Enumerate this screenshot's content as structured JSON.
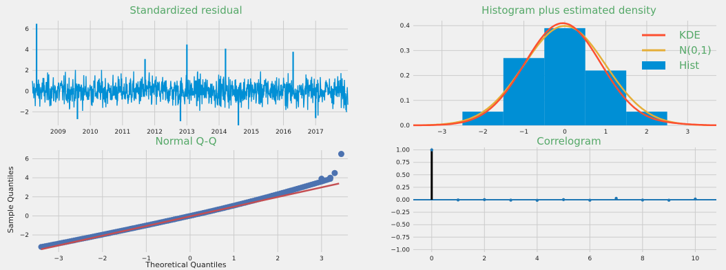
{
  "chart_data": [
    {
      "type": "line",
      "title": "Standardized residual",
      "xlabel": "",
      "ylabel": "",
      "x_tick_labels": [
        "2009",
        "2010",
        "2011",
        "2012",
        "2013",
        "2014",
        "2015",
        "2016",
        "2017"
      ],
      "y_ticks": [
        -2,
        0,
        2,
        4,
        6
      ],
      "xlim": [
        2008.2,
        2018.0
      ],
      "ylim": [
        -3.3,
        6.8
      ],
      "series_color": "#008fd5",
      "spikes": [
        {
          "x": 2008.33,
          "y": 6.5
        },
        {
          "x": 2013.0,
          "y": 4.5
        },
        {
          "x": 2014.2,
          "y": 4.1
        },
        {
          "x": 2014.6,
          "y": -3.3
        },
        {
          "x": 2016.3,
          "y": 3.8
        },
        {
          "x": 2011.7,
          "y": 3.1
        },
        {
          "x": 2012.8,
          "y": -2.9
        },
        {
          "x": 2009.6,
          "y": -2.7
        },
        {
          "x": 2017.0,
          "y": -2.6
        }
      ],
      "grid": true
    },
    {
      "type": "bar",
      "title": "Histogram plus estimated density",
      "x_ticks": [
        -3,
        -2,
        -1,
        0,
        1,
        2,
        3
      ],
      "y_ticks": [
        0.0,
        0.1,
        0.2,
        0.3,
        0.4
      ],
      "xlim": [
        -3.7,
        3.7
      ],
      "ylim": [
        0,
        0.42
      ],
      "bins": [
        {
          "x0": -2.5,
          "x1": -1.5,
          "value": 0.055
        },
        {
          "x0": -1.5,
          "x1": -0.5,
          "value": 0.27
        },
        {
          "x0": -0.5,
          "x1": 0.5,
          "value": 0.39
        },
        {
          "x0": 0.5,
          "x1": 1.5,
          "value": 0.22
        },
        {
          "x0": 1.5,
          "x1": 2.5,
          "value": 0.055
        }
      ],
      "kde_mode": -0.05,
      "kde_peak": 0.41,
      "legend": [
        {
          "label": "KDE",
          "color": "#fc4f30"
        },
        {
          "label": "N(0,1)",
          "color": "#e5ae38"
        },
        {
          "label": "Hist",
          "color": "#008fd5"
        }
      ],
      "legend_position": "top-right",
      "grid": true
    },
    {
      "type": "scatter",
      "title": "Normal Q-Q",
      "xlabel": "Theoretical Quantiles",
      "ylabel": "Sample Quantiles",
      "x_ticks": [
        -3,
        -2,
        -1,
        0,
        1,
        2,
        3
      ],
      "y_ticks": [
        -2,
        0,
        2,
        4,
        6
      ],
      "xlim": [
        -3.6,
        3.6
      ],
      "ylim": [
        -3.8,
        6.9
      ],
      "reference_line": [
        [
          -3.4,
          -3.5
        ],
        [
          3.4,
          3.4
        ]
      ],
      "outliers": [
        [
          3.0,
          3.9
        ],
        [
          3.2,
          4.0
        ],
        [
          3.3,
          4.5
        ],
        [
          3.45,
          6.5
        ]
      ],
      "point_color": "#4c72b0",
      "line_color": "#c44e52",
      "grid": true
    },
    {
      "type": "bar",
      "title": "Correlogram",
      "x_ticks": [
        0,
        2,
        4,
        6,
        8,
        10
      ],
      "y_tick_labels": [
        "1.00",
        "0.75",
        "0.50",
        "0.25",
        "0.00",
        "−0.25",
        "−0.50",
        "−0.75",
        "−1.00"
      ],
      "y_ticks": [
        1.0,
        0.75,
        0.5,
        0.25,
        0.0,
        -0.25,
        -0.5,
        -0.75,
        -1.0
      ],
      "xlim": [
        -0.7,
        10.8
      ],
      "ylim": [
        -1.05,
        1.05
      ],
      "lags": [
        0,
        1,
        2,
        3,
        4,
        5,
        6,
        7,
        8,
        9,
        10
      ],
      "values": [
        1.0,
        -0.005,
        0.002,
        -0.008,
        -0.012,
        0.003,
        -0.01,
        0.028,
        -0.006,
        -0.01,
        0.015
      ],
      "grid": true
    }
  ]
}
